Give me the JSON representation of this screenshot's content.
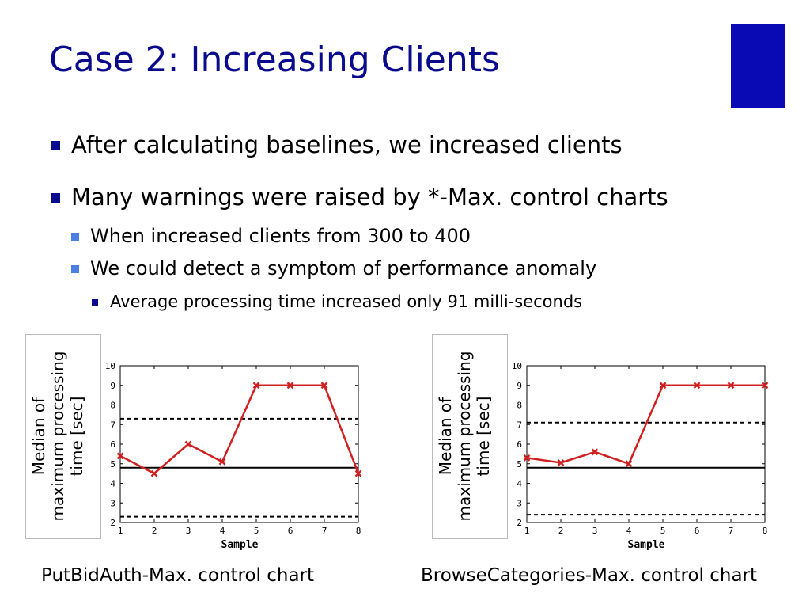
{
  "slide": {
    "title": "Case 2: Increasing Clients",
    "accent_color": "#0a0ab4",
    "bullets": [
      "After calculating baselines, we increased clients",
      "Many warnings were raised by *-Max. control charts"
    ],
    "sub_bullets": [
      "When increased clients from 300 to 400",
      "We could detect a symptom of performance anomaly"
    ],
    "sub_sub_bullets": [
      "Average processing time increased only 91 milli-seconds"
    ]
  },
  "chart_data": [
    {
      "type": "line",
      "caption": "PutBidAuth-Max. control chart",
      "ylabel": [
        "Median of",
        "maximum processing",
        "time [sec]"
      ],
      "xlabel": "Sample",
      "x": [
        1,
        2,
        3,
        4,
        5,
        6,
        7,
        8
      ],
      "y": [
        5.4,
        4.5,
        6.0,
        5.1,
        9.0,
        9.0,
        9.0,
        4.5
      ],
      "series_color": "#d02020",
      "center_line": 4.8,
      "upper_limit": 7.3,
      "lower_limit": 2.3,
      "xlim": [
        1,
        8
      ],
      "ylim": [
        2,
        10
      ],
      "yticks": [
        2,
        3,
        4,
        5,
        6,
        7,
        8,
        9,
        10
      ],
      "xticks": [
        1,
        2,
        3,
        4,
        5,
        6,
        7,
        8
      ]
    },
    {
      "type": "line",
      "caption": "BrowseCategories-Max. control chart",
      "ylabel": [
        "Median of",
        "maximum processing",
        "time [sec]"
      ],
      "xlabel": "Sample",
      "x": [
        1,
        2,
        3,
        4,
        5,
        6,
        7,
        8
      ],
      "y": [
        5.3,
        5.05,
        5.6,
        5.0,
        9.0,
        9.0,
        9.0,
        9.0
      ],
      "series_color": "#d02020",
      "center_line": 4.8,
      "upper_limit": 7.1,
      "lower_limit": 2.4,
      "xlim": [
        1,
        8
      ],
      "ylim": [
        2,
        10
      ],
      "yticks": [
        2,
        3,
        4,
        5,
        6,
        7,
        8,
        9,
        10
      ],
      "xticks": [
        1,
        2,
        3,
        4,
        5,
        6,
        7,
        8
      ]
    }
  ]
}
